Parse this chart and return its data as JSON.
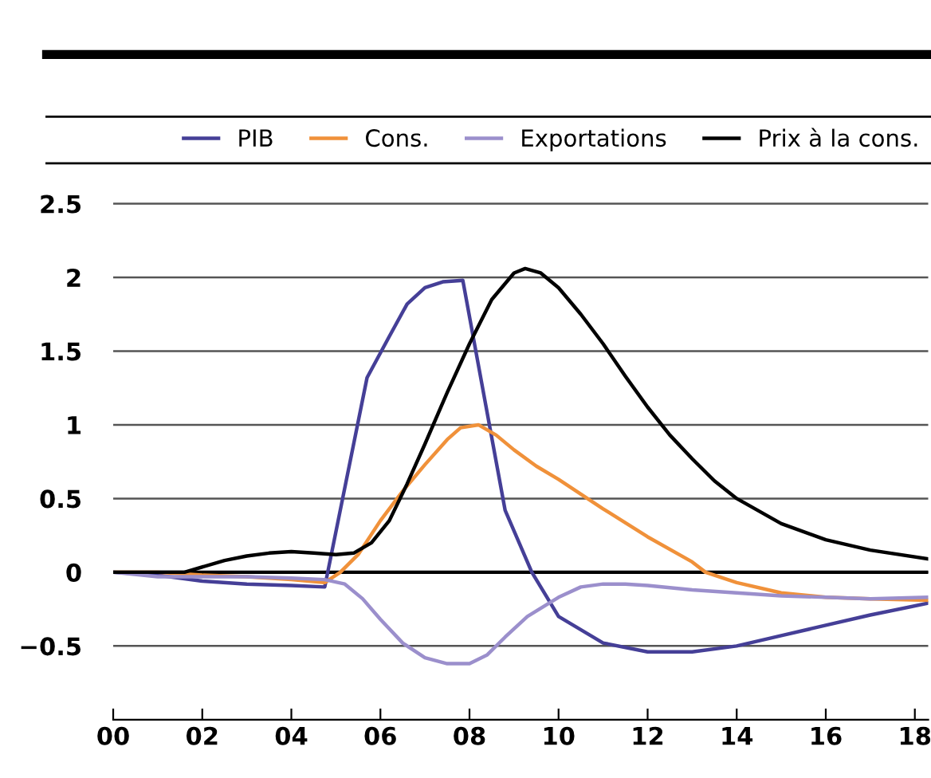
{
  "chart_data": {
    "type": "line",
    "xlim": [
      0,
      18.3
    ],
    "ylim": [
      -1,
      2.8
    ],
    "xticks": [
      {
        "value": 0,
        "label": "00"
      },
      {
        "value": 2,
        "label": "02"
      },
      {
        "value": 4,
        "label": "04"
      },
      {
        "value": 6,
        "label": "06"
      },
      {
        "value": 8,
        "label": "08"
      },
      {
        "value": 10,
        "label": "10"
      },
      {
        "value": 12,
        "label": "12"
      },
      {
        "value": 14,
        "label": "14"
      },
      {
        "value": 16,
        "label": "16"
      },
      {
        "value": 18,
        "label": "18"
      }
    ],
    "yticks": [
      {
        "value": -0.5,
        "label": "−0.5"
      },
      0,
      0.5,
      1,
      1.5,
      2,
      2.5
    ],
    "grid": "y",
    "legend": "top",
    "marker": "none",
    "line_style": "solid",
    "ref_lines": [
      {
        "axis": "y",
        "value": 0,
        "color": "#000000"
      }
    ],
    "series": [
      {
        "name": "PIB",
        "color": "#453f97",
        "x": [
          0,
          1,
          2,
          3,
          4,
          4.75,
          5.7,
          6.2,
          6.6,
          7,
          7.4,
          7.85,
          8.8,
          9.4,
          10,
          11,
          12,
          13,
          14,
          15,
          16,
          17,
          18.3
        ],
        "values": [
          0,
          -0.02,
          -0.06,
          -0.08,
          -0.09,
          -0.1,
          1.32,
          1.6,
          1.82,
          1.93,
          1.97,
          1.98,
          0.42,
          0.0,
          -0.3,
          -0.48,
          -0.54,
          -0.54,
          -0.5,
          -0.43,
          -0.36,
          -0.29,
          -0.21
        ]
      },
      {
        "name": "Cons.",
        "color": "#f0913a",
        "x": [
          0,
          1,
          2,
          3,
          4,
          4.75,
          5.1,
          5.5,
          6,
          6.5,
          7,
          7.5,
          7.8,
          8.2,
          8.6,
          9,
          9.5,
          10,
          11,
          12,
          13,
          13.3,
          14,
          15,
          16,
          17,
          18.3
        ],
        "values": [
          0,
          0,
          -0.02,
          -0.03,
          -0.05,
          -0.07,
          0,
          0.12,
          0.35,
          0.55,
          0.73,
          0.9,
          0.98,
          1.0,
          0.93,
          0.83,
          0.72,
          0.63,
          0.43,
          0.24,
          0.07,
          0.0,
          -0.07,
          -0.14,
          -0.17,
          -0.18,
          -0.19
        ]
      },
      {
        "name": "Exportations",
        "color": "#9b8fcc",
        "x": [
          0,
          1,
          2,
          3,
          4,
          4.75,
          5.2,
          5.6,
          6,
          6.5,
          7,
          7.5,
          8,
          8.4,
          8.8,
          9.3,
          10,
          10.5,
          11,
          11.5,
          12,
          13,
          14,
          15,
          16,
          17,
          18.3
        ],
        "values": [
          0,
          -0.03,
          -0.03,
          -0.03,
          -0.04,
          -0.05,
          -0.08,
          -0.18,
          -0.32,
          -0.48,
          -0.58,
          -0.62,
          -0.62,
          -0.56,
          -0.44,
          -0.3,
          -0.17,
          -0.1,
          -0.08,
          -0.08,
          -0.09,
          -0.12,
          -0.14,
          -0.16,
          -0.17,
          -0.18,
          -0.17
        ]
      },
      {
        "name": "Prix à la cons.",
        "color": "#000000",
        "x": [
          0,
          1.6,
          2.5,
          3,
          3.5,
          4,
          4.5,
          5,
          5.4,
          5.8,
          6.2,
          6.6,
          7,
          7.5,
          8,
          8.5,
          9,
          9.25,
          9.6,
          10,
          10.5,
          11,
          11.5,
          12,
          12.5,
          13,
          13.5,
          14,
          15,
          16,
          17,
          18.3
        ],
        "values": [
          0,
          0,
          0.08,
          0.11,
          0.13,
          0.14,
          0.13,
          0.12,
          0.13,
          0.2,
          0.35,
          0.6,
          0.87,
          1.22,
          1.55,
          1.85,
          2.03,
          2.06,
          2.03,
          1.93,
          1.75,
          1.55,
          1.33,
          1.12,
          0.93,
          0.77,
          0.62,
          0.5,
          0.33,
          0.22,
          0.15,
          0.09
        ]
      }
    ]
  }
}
